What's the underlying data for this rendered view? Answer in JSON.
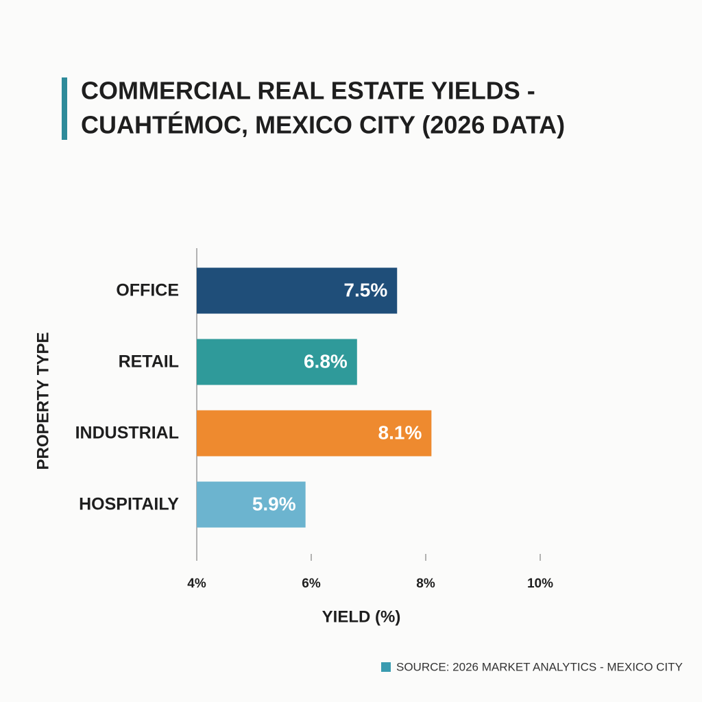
{
  "chart_data": {
    "type": "hbar",
    "title": [
      "COMMERCIAL REAL ESTATE YIELDS -",
      "CUAHTÉMOC, MEXICO CITY (2026 DATA)"
    ],
    "categories": [
      "OFFICE",
      "RETAIL",
      "INDUSTRIAL",
      "HOSPITAILY"
    ],
    "values": [
      7.5,
      6.8,
      8.1,
      5.9
    ],
    "value_labels": [
      "7.5%",
      "6.8%",
      "8.1%",
      "5.9%"
    ],
    "colors": [
      "#1f4e79",
      "#2f9a9a",
      "#ee8a2f",
      "#6cb4cf"
    ],
    "xlim": [
      4,
      10
    ],
    "xticks": [
      {
        "value": 4,
        "label": "4%"
      },
      {
        "value": 6,
        "label": "6%"
      },
      {
        "value": 8,
        "label": "8%"
      },
      {
        "value": 10,
        "label": "10%"
      }
    ],
    "xlabel": "YIELD (%)",
    "ylabel": "PROPERTY TYPE",
    "source": "SOURCE: 2026 MARKET ANALYTICS - MEXICO CITY"
  }
}
